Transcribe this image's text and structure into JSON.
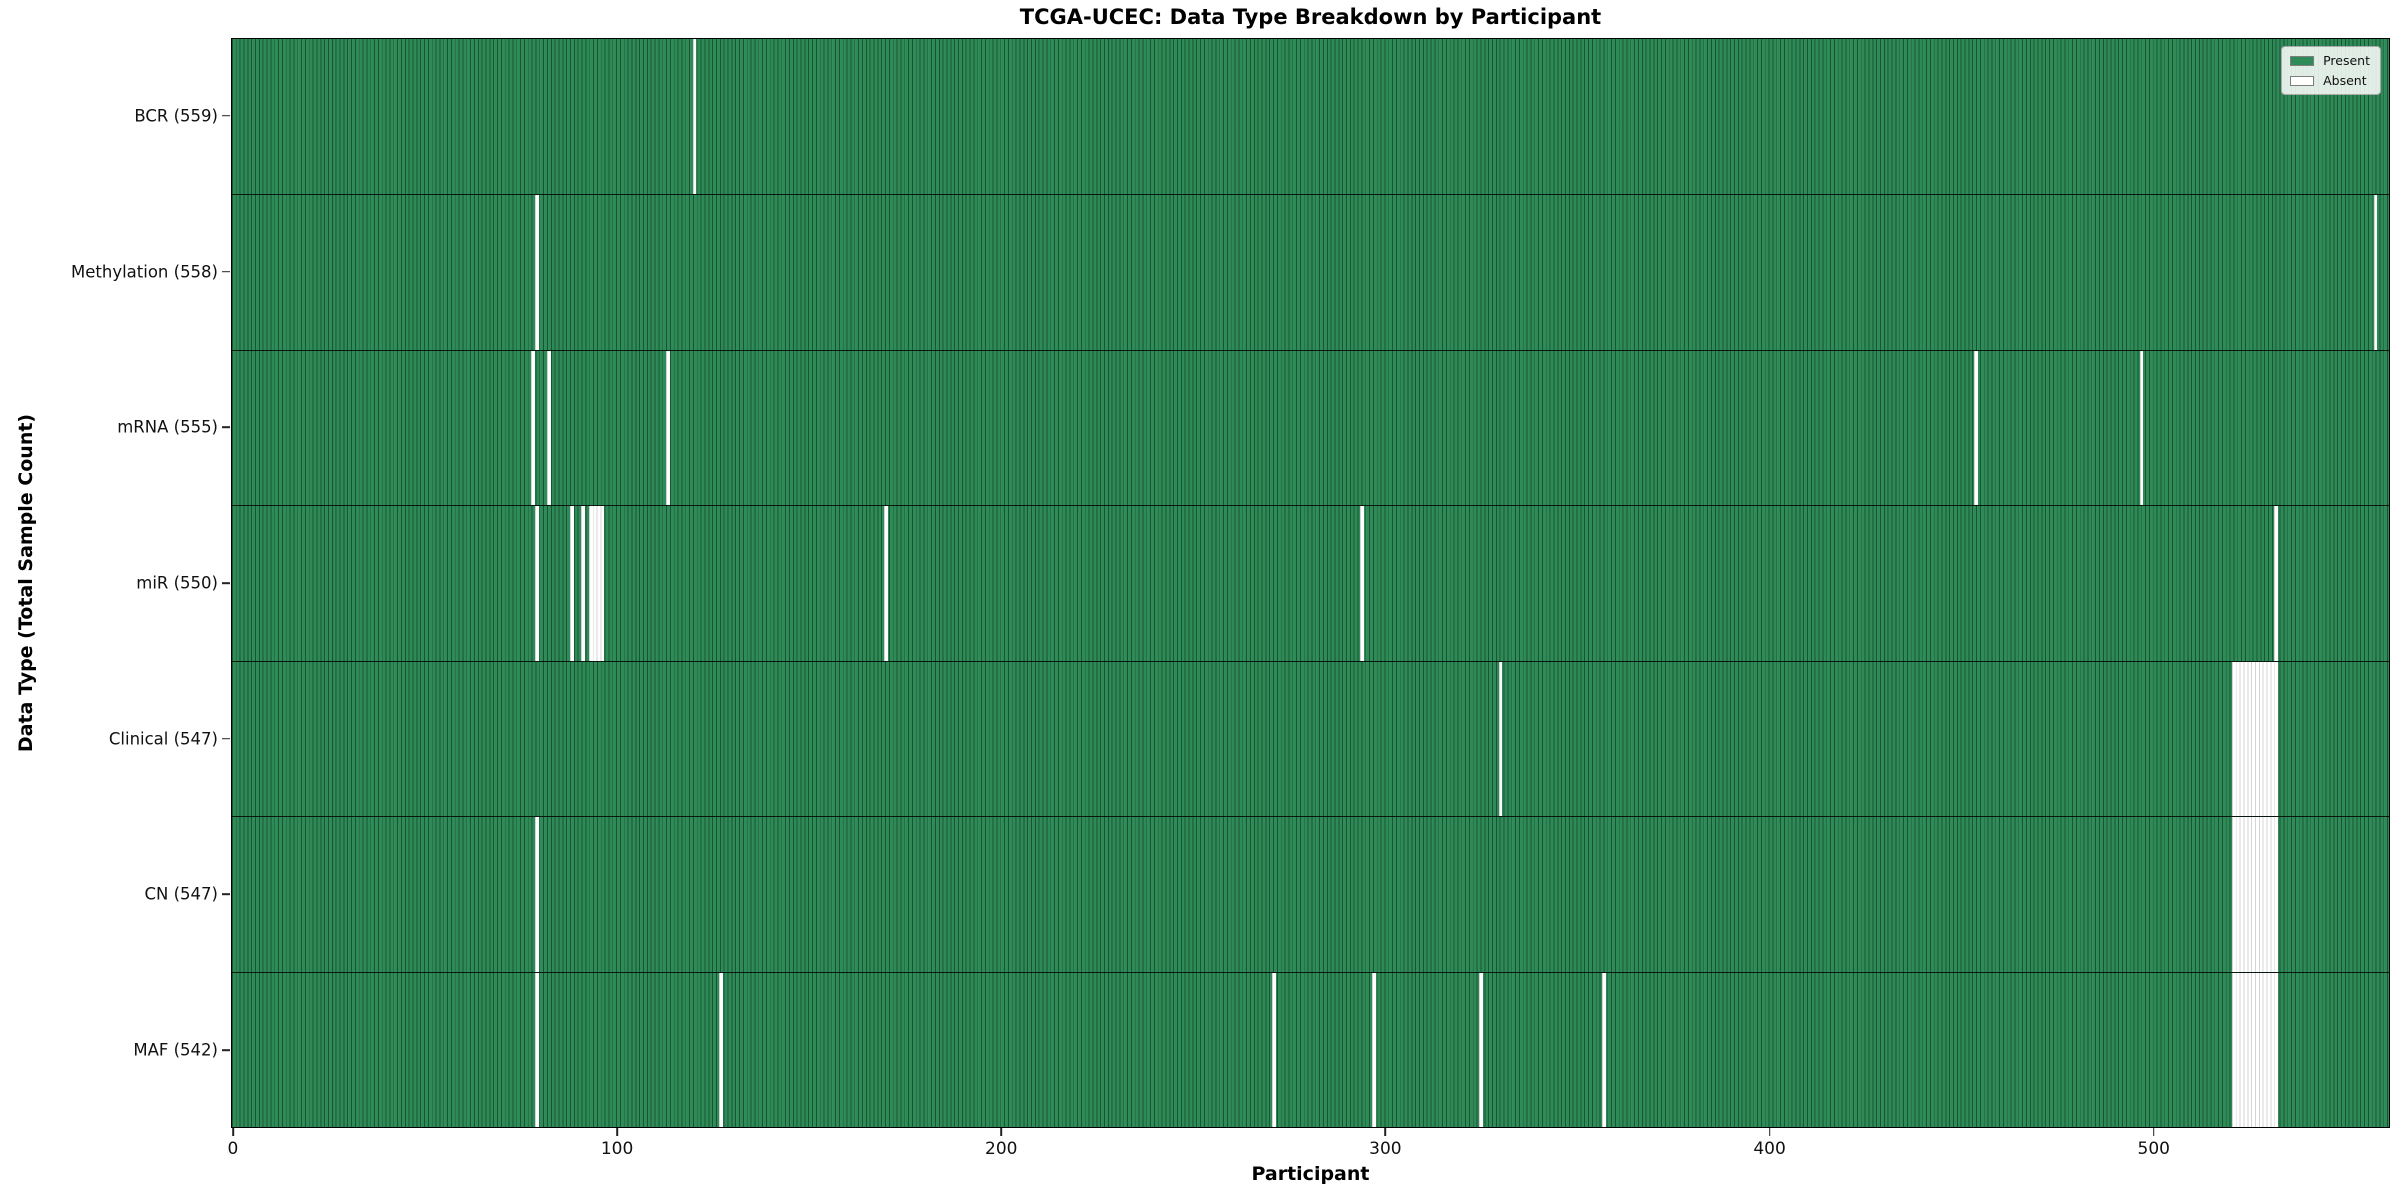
{
  "title": "TCGA-UCEC: Data Type Breakdown by Participant",
  "chart_data": {
    "type": "heatmap",
    "title": "TCGA-UCEC: Data Type Breakdown by Participant",
    "xlabel": "Participant",
    "ylabel": "Data Type (Total Sample Count)",
    "x_ticks": [
      0,
      100,
      200,
      300,
      400,
      500
    ],
    "x_axis_units": 562,
    "total_participants": 560,
    "grid": false,
    "legend": {
      "position": "upper right",
      "entries": [
        {
          "label": "Present",
          "color": "#2e8b57"
        },
        {
          "label": "Absent",
          "color": "#ffffff"
        }
      ]
    },
    "colors": {
      "present": "#2e8b57",
      "absent": "#ffffff",
      "bar_edge": "rgba(3,30,16,0.5)",
      "row_divider": "#1a1a1a"
    },
    "rows": [
      {
        "name": "BCR",
        "label": "BCR (559)",
        "count": 559,
        "absent_participants": [
          120
        ]
      },
      {
        "name": "Methylation",
        "label": "Methylation (558)",
        "count": 558,
        "absent_participants": [
          79,
          558
        ]
      },
      {
        "name": "mRNA",
        "label": "mRNA (555)",
        "count": 555,
        "absent_participants": [
          78,
          82,
          113,
          454,
          497
        ]
      },
      {
        "name": "miR",
        "label": "miR (550)",
        "count": 550,
        "absent_participants": [
          79,
          88,
          91,
          93,
          94,
          95,
          96,
          170,
          294,
          532
        ]
      },
      {
        "name": "Clinical",
        "label": "Clinical (547)",
        "count": 547,
        "absent_participants": [
          330,
          521,
          522,
          523,
          524,
          525,
          526,
          527,
          528,
          529,
          530,
          531,
          532
        ]
      },
      {
        "name": "CN",
        "label": "CN (547)",
        "count": 547,
        "absent_participants": [
          79,
          521,
          522,
          523,
          524,
          525,
          526,
          527,
          528,
          529,
          530,
          531,
          532
        ]
      },
      {
        "name": "MAF",
        "label": "MAF (542)",
        "count": 542,
        "absent_participants": [
          79,
          127,
          271,
          297,
          325,
          357,
          521,
          522,
          523,
          524,
          525,
          526,
          527,
          528,
          529,
          530,
          531,
          532
        ]
      }
    ]
  }
}
